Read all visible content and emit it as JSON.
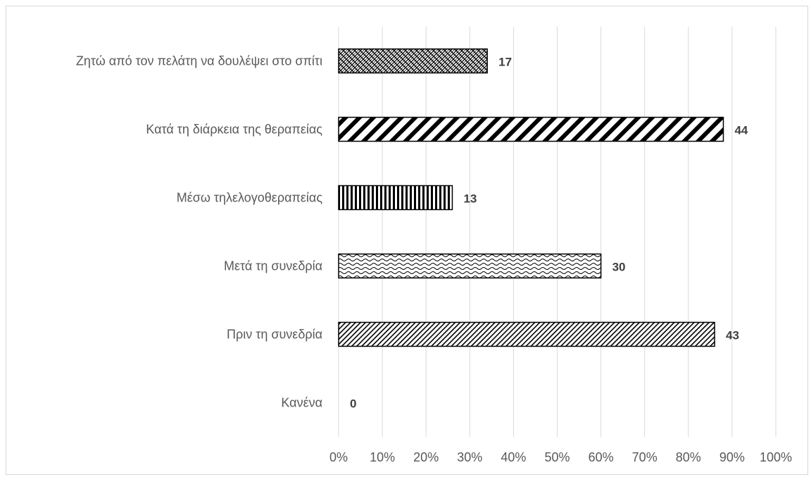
{
  "chart_data": {
    "type": "bar",
    "orientation": "horizontal",
    "categories": [
      "Ζητώ από τον πελάτη να δουλέψει στο σπίτι",
      "Κατά τη διάρκεια της θεραπείας",
      "Μέσω τηλελογοθεραπείας",
      "Μετά τη συνεδρία",
      "Πριν τη συνεδρία",
      "Κανένα"
    ],
    "series": [
      {
        "data_labels": [
          "17",
          "44",
          "13",
          "30",
          "43",
          "0"
        ],
        "values_percent": [
          34,
          88,
          26,
          60,
          86,
          0
        ],
        "patterns": [
          "cross",
          "diagonal-wide",
          "vertical",
          "wave",
          "diagonal-fine",
          "none"
        ]
      }
    ],
    "xlim": [
      0,
      100
    ],
    "x_ticks": [
      "0%",
      "10%",
      "20%",
      "30%",
      "40%",
      "50%",
      "60%",
      "70%",
      "80%",
      "90%",
      "100%"
    ],
    "grid": "vertical",
    "title": "",
    "xlabel": "",
    "ylabel": "",
    "colors": {
      "bar_stroke": "#000000",
      "pattern_ink": "#000000",
      "grid": "#d9d9d9",
      "text": "#595959",
      "data_label": "#404040"
    }
  }
}
